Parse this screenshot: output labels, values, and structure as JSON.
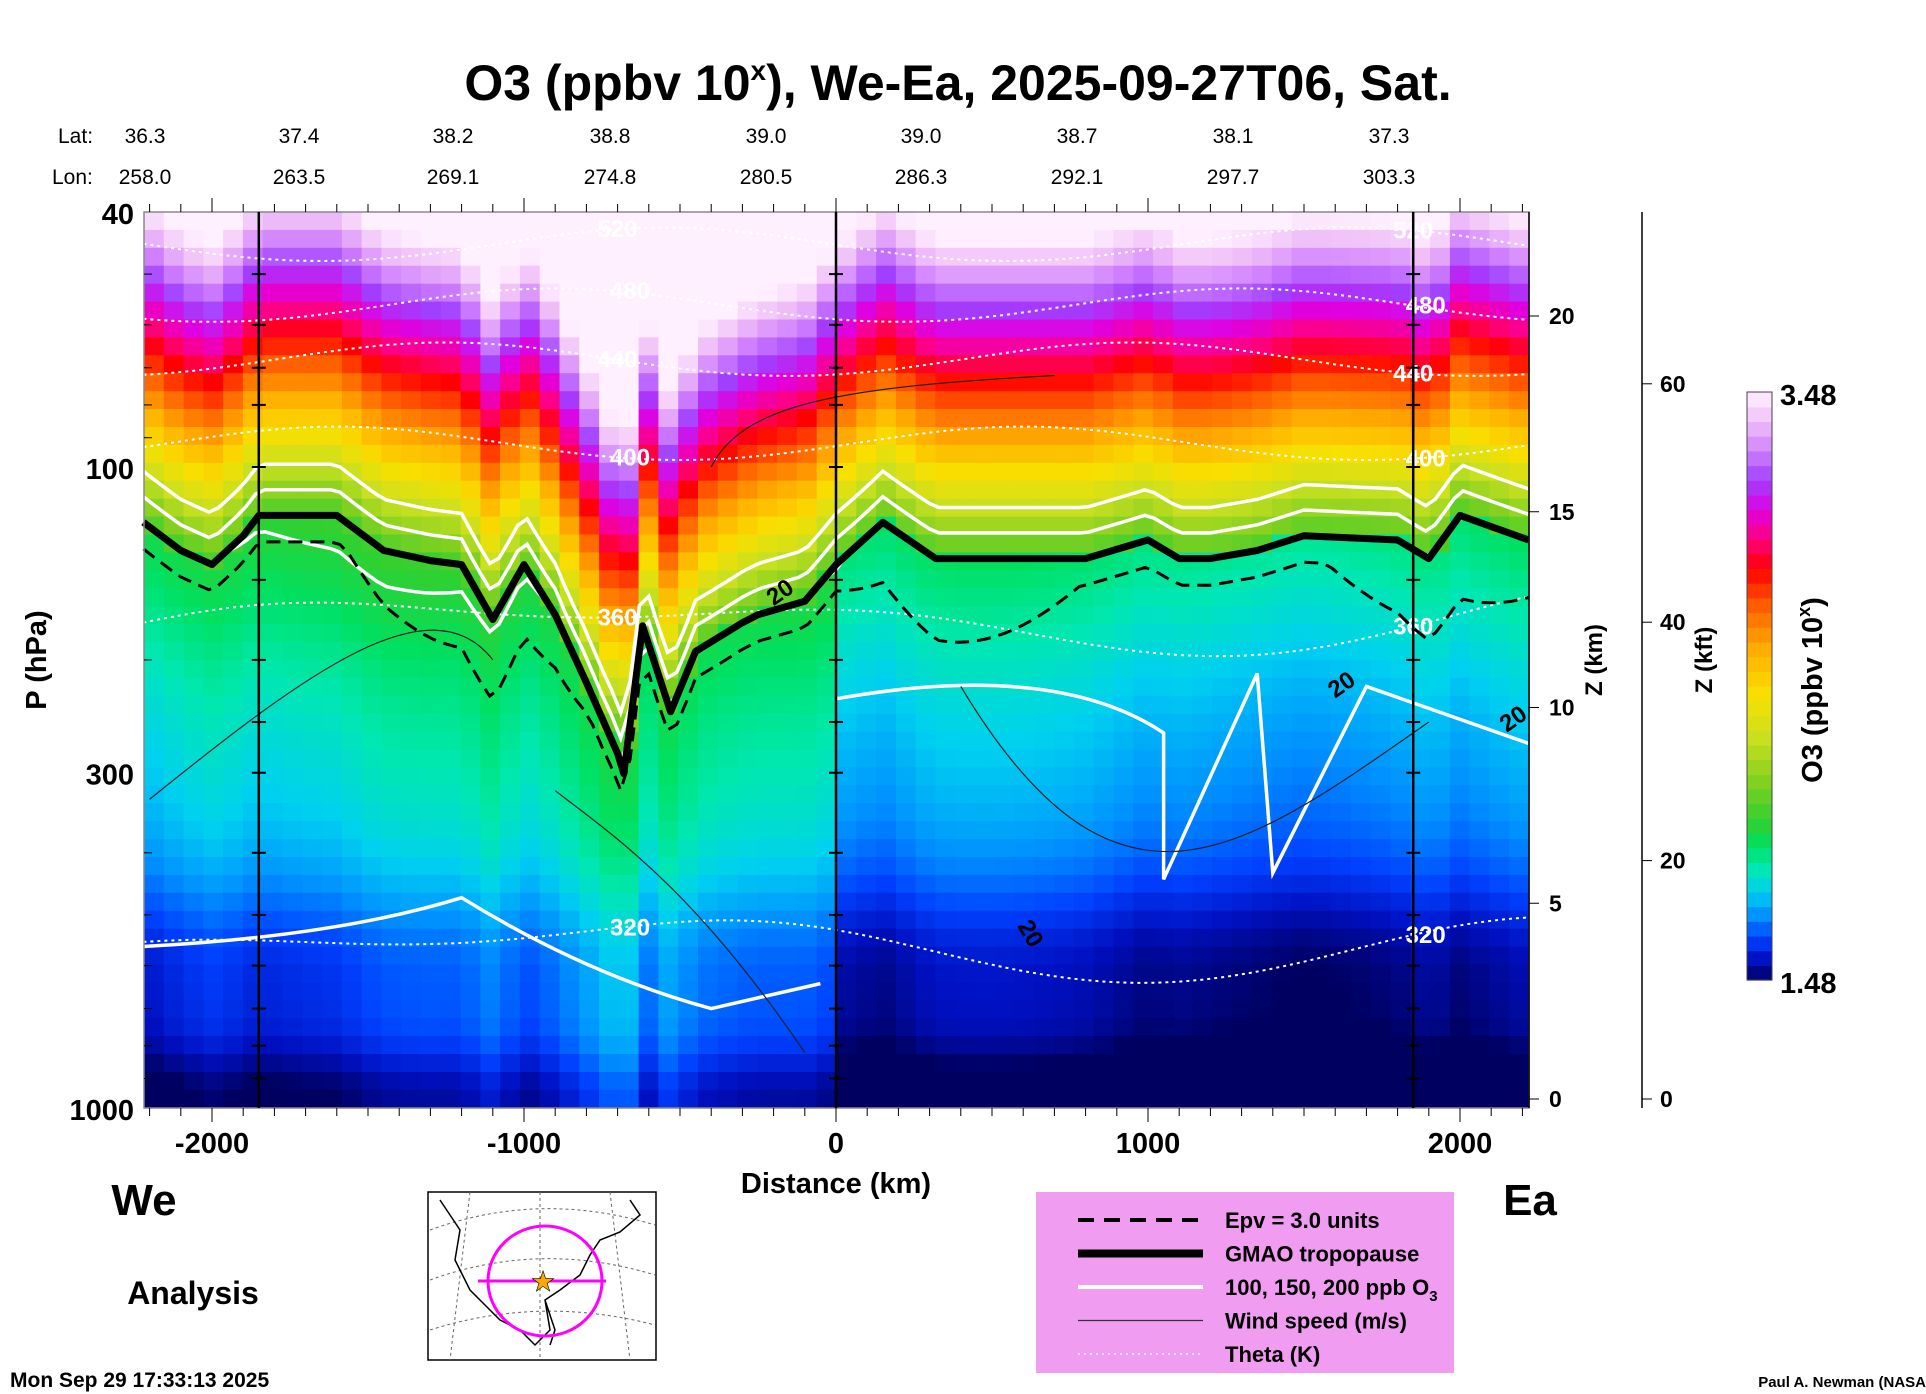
{
  "chart_data": {
    "type": "heatmap",
    "title_main": "O3 (ppbv 10",
    "title_sup": "x",
    "title_rest": "), We-Ea, 2025-09-27T06, Sat.",
    "lat_label": "Lat:",
    "lon_label": "Lon:",
    "lat": [
      "36.3",
      "37.4",
      "38.2",
      "38.8",
      "39.0",
      "39.0",
      "38.7",
      "38.1",
      "37.3"
    ],
    "lon": [
      "258.0",
      "263.5",
      "269.1",
      "274.8",
      "280.5",
      "286.3",
      "292.1",
      "297.7",
      "303.3"
    ],
    "xlabel": "Distance (km)",
    "ylabel": "P (hPa)",
    "y2label": "Z (km)",
    "y3label": "Z (kft)",
    "xlim": [
      -2220,
      2220
    ],
    "ylim_hpa": [
      1000,
      40
    ],
    "x_ticks": [
      -2000,
      -1000,
      0,
      1000,
      2000
    ],
    "y_ticks": [
      40,
      100,
      300,
      1000
    ],
    "zkm_ticks": [
      0,
      5,
      10,
      15,
      20
    ],
    "zkft_ticks": [
      0,
      20,
      40,
      60
    ],
    "section_markers_km": [
      -1850,
      0,
      1850
    ],
    "colorbar": {
      "label": "O3 (ppbv 10",
      "label_sup": "x",
      "label_end": ")",
      "min": 1.48,
      "max": 3.48,
      "min_label": "1.48",
      "max_label": "3.48"
    },
    "colormap": [
      [
        1.48,
        "#000060"
      ],
      [
        1.55,
        "#0010c0"
      ],
      [
        1.62,
        "#0040ff"
      ],
      [
        1.7,
        "#0090ff"
      ],
      [
        1.78,
        "#00d0f0"
      ],
      [
        1.86,
        "#00e8b0"
      ],
      [
        1.94,
        "#00e060"
      ],
      [
        2.02,
        "#30d030"
      ],
      [
        2.15,
        "#80d020"
      ],
      [
        2.3,
        "#c8e020"
      ],
      [
        2.45,
        "#f8e000"
      ],
      [
        2.6,
        "#ffb000"
      ],
      [
        2.75,
        "#ff6000"
      ],
      [
        2.88,
        "#ff0000"
      ],
      [
        2.98,
        "#ff0080"
      ],
      [
        3.08,
        "#e000e0"
      ],
      [
        3.18,
        "#a040ff"
      ],
      [
        3.28,
        "#d080ff"
      ],
      [
        3.38,
        "#f0c0f8"
      ],
      [
        3.48,
        "#fff0ff"
      ]
    ],
    "tropopause_hpa": [
      [
        -2220,
        122
      ],
      [
        -2100,
        135
      ],
      [
        -2000,
        142
      ],
      [
        -1900,
        128
      ],
      [
        -1850,
        119
      ],
      [
        -1600,
        119
      ],
      [
        -1450,
        135
      ],
      [
        -1300,
        140
      ],
      [
        -1200,
        142
      ],
      [
        -1100,
        173
      ],
      [
        -1000,
        142
      ],
      [
        -900,
        170
      ],
      [
        -800,
        217
      ],
      [
        -700,
        280
      ],
      [
        -680,
        301
      ],
      [
        -620,
        177
      ],
      [
        -530,
        241
      ],
      [
        -450,
        194
      ],
      [
        -300,
        175
      ],
      [
        -250,
        170
      ],
      [
        -100,
        162
      ],
      [
        0,
        142
      ],
      [
        150,
        122
      ],
      [
        320,
        139
      ],
      [
        800,
        139
      ],
      [
        1000,
        130
      ],
      [
        1100,
        139
      ],
      [
        1200,
        139
      ],
      [
        1350,
        135
      ],
      [
        1500,
        128
      ],
      [
        1800,
        130
      ],
      [
        1900,
        139
      ],
      [
        2000,
        119
      ],
      [
        2220,
        130
      ]
    ],
    "theta_levels": [
      {
        "label": "520",
        "hpa": 45
      },
      {
        "label": "480",
        "hpa": 56
      },
      {
        "label": "440",
        "hpa": 68
      },
      {
        "label": "400",
        "hpa": 92
      },
      {
        "label": "360",
        "hpa": 175
      },
      {
        "label": "320",
        "hpa": 560
      }
    ],
    "wind_labels": [
      "20",
      "20",
      "20",
      "20"
    ],
    "legend": [
      {
        "style": "dashed",
        "label": "Epv = 3.0 units"
      },
      {
        "style": "thick",
        "label": "GMAO tropopause"
      },
      {
        "style": "white",
        "label": "100, 150, 200 ppb O",
        "sub": "3"
      },
      {
        "style": "thin",
        "label": "Wind speed (m/s)"
      },
      {
        "style": "dotted",
        "label": "Theta (K)"
      }
    ],
    "legend_bg": "#f09cf0"
  },
  "labels": {
    "west": "We",
    "east": "Ea",
    "analysis": "Analysis",
    "timestamp": "Mon Sep 29 17:33:13 2025",
    "credit": "Paul A. Newman (NASA"
  }
}
